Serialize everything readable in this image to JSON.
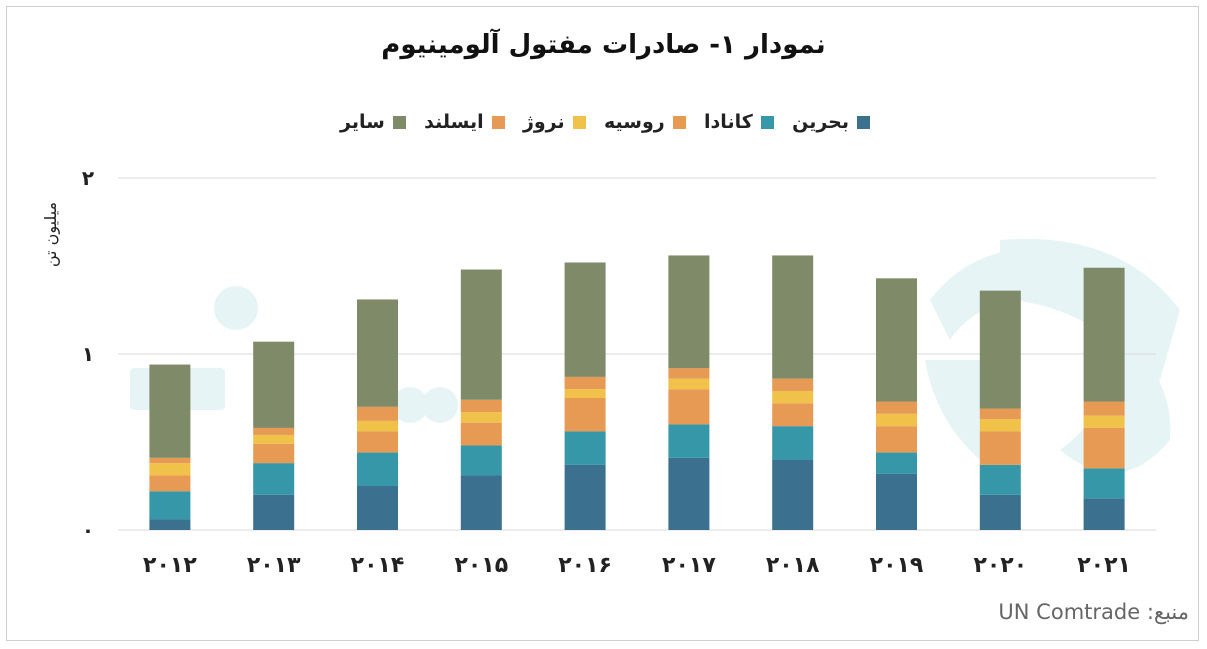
{
  "chart_data": {
    "type": "bar",
    "stacked": true,
    "title": "نمودار ۱- صادرات مفتول آلومینیوم",
    "ylabel": "میلیون تن",
    "xlabel": "",
    "ylim": [
      0,
      2
    ],
    "yticks": [
      {
        "value": 0,
        "label": "۰"
      },
      {
        "value": 1,
        "label": "۱"
      },
      {
        "value": 2,
        "label": "۲"
      }
    ],
    "categories": [
      "۲۰۱۲",
      "۲۰۱۳",
      "۲۰۱۴",
      "۲۰۱۵",
      "۲۰۱۶",
      "۲۰۱۷",
      "۲۰۱۸",
      "۲۰۱۹",
      "۲۰۲۰",
      "۲۰۲۱"
    ],
    "legend_position": "top",
    "grid": true,
    "series": [
      {
        "name": "بحرین",
        "color": "#3b718f",
        "values": [
          0.06,
          0.2,
          0.25,
          0.31,
          0.37,
          0.41,
          0.4,
          0.32,
          0.2,
          0.18
        ]
      },
      {
        "name": "کانادا",
        "color": "#3597a7",
        "values": [
          0.16,
          0.18,
          0.19,
          0.17,
          0.19,
          0.19,
          0.19,
          0.12,
          0.17,
          0.17
        ]
      },
      {
        "name": "روسیه",
        "color": "#e69a54",
        "values": [
          0.09,
          0.11,
          0.12,
          0.13,
          0.19,
          0.2,
          0.13,
          0.15,
          0.19,
          0.23
        ]
      },
      {
        "name": "نروژ",
        "color": "#f0c24a",
        "values": [
          0.07,
          0.05,
          0.06,
          0.06,
          0.05,
          0.06,
          0.07,
          0.07,
          0.07,
          0.07
        ]
      },
      {
        "name": "ایسلند",
        "color": "#e69a54",
        "values": [
          0.03,
          0.04,
          0.08,
          0.07,
          0.07,
          0.06,
          0.07,
          0.07,
          0.06,
          0.08
        ]
      },
      {
        "name": "سایر",
        "color": "#7f8a69",
        "values": [
          0.53,
          0.49,
          0.61,
          0.74,
          0.65,
          0.64,
          0.7,
          0.7,
          0.67,
          0.76
        ]
      }
    ]
  },
  "source": {
    "text": "منبع: UN Comtrade"
  },
  "colors": {
    "grid": "#d9d9d9",
    "watermark": "#e6f4f6"
  }
}
